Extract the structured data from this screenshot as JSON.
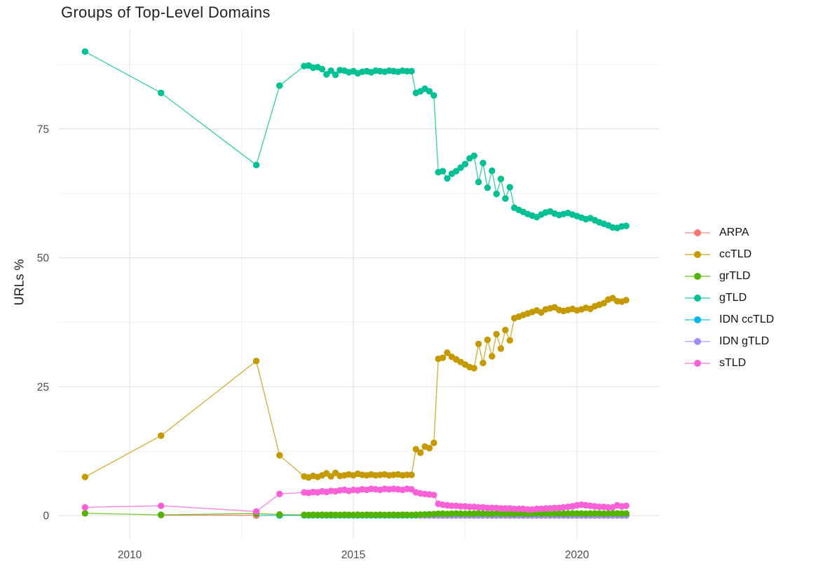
{
  "chart_data": {
    "type": "line",
    "title": "Groups of Top-Level Domains",
    "xlabel": "",
    "ylabel": "URLs %",
    "legend_position": "right",
    "grid": true,
    "x_ticks": [
      2010,
      2015,
      2020
    ],
    "x_minor_ticks": [
      2012.5,
      2017.5
    ],
    "y_ticks": [
      0,
      25,
      50,
      75
    ],
    "y_minor_ticks": [
      12.5,
      37.5,
      62.5,
      87.5
    ],
    "x_range": [
      2008.4,
      2021.85
    ],
    "y_range": [
      -4.6,
      94.3
    ],
    "colors": {
      "major_grid": "#e4e4e4",
      "minor_grid": "#f1f1f1",
      "tick_label": "#4d4d4d",
      "title": "#222222"
    },
    "x": [
      2009.0,
      2010.7,
      2012.83,
      2013.35,
      2013.9,
      2014.0,
      2014.1,
      2014.2,
      2014.3,
      2014.4,
      2014.5,
      2014.6,
      2014.7,
      2014.8,
      2014.9,
      2015.0,
      2015.1,
      2015.2,
      2015.3,
      2015.4,
      2015.5,
      2015.6,
      2015.7,
      2015.8,
      2015.9,
      2016.0,
      2016.1,
      2016.2,
      2016.3,
      2016.4,
      2016.5,
      2016.6,
      2016.7,
      2016.8,
      2016.9,
      2017.0,
      2017.1,
      2017.2,
      2017.3,
      2017.4,
      2017.5,
      2017.6,
      2017.7,
      2017.8,
      2017.9,
      2018.0,
      2018.1,
      2018.2,
      2018.3,
      2018.4,
      2018.5,
      2018.6,
      2018.7,
      2018.8,
      2018.9,
      2019.0,
      2019.1,
      2019.2,
      2019.3,
      2019.4,
      2019.5,
      2019.6,
      2019.7,
      2019.8,
      2019.9,
      2020.0,
      2020.1,
      2020.2,
      2020.3,
      2020.4,
      2020.5,
      2020.6,
      2020.7,
      2020.8,
      2020.9,
      2021.0,
      2021.1
    ],
    "series": [
      {
        "name": "ARPA",
        "color": "#F8766D",
        "values": [
          null,
          0.1,
          0.05,
          null,
          null,
          null,
          null,
          null,
          null,
          null,
          null,
          null,
          null,
          null,
          null,
          null,
          null,
          null,
          null,
          null,
          null,
          null,
          null,
          null,
          null,
          null,
          null,
          null,
          null,
          null,
          null,
          null,
          null,
          null,
          null,
          null,
          null,
          null,
          null,
          null,
          null,
          null,
          null,
          null,
          null,
          null,
          null,
          null,
          null,
          null,
          null,
          null,
          null,
          null,
          null,
          null,
          null,
          null,
          null,
          null,
          null,
          null,
          null,
          null,
          null,
          null,
          null,
          null,
          null,
          null,
          null,
          null,
          null,
          null,
          null,
          null,
          null
        ]
      },
      {
        "name": "ccTLD",
        "color": "#C49A00",
        "values": [
          7.5,
          15.5,
          30.0,
          11.7,
          7.6,
          7.4,
          7.7,
          7.5,
          7.8,
          8.2,
          7.6,
          8.3,
          7.7,
          7.8,
          8.0,
          7.8,
          8.1,
          7.9,
          7.8,
          8.0,
          7.8,
          7.9,
          8.0,
          7.8,
          7.9,
          8.0,
          7.8,
          7.9,
          7.9,
          12.9,
          12.2,
          13.4,
          13.1,
          14.1,
          30.4,
          30.6,
          31.6,
          30.8,
          30.3,
          29.8,
          29.3,
          28.8,
          28.6,
          33.3,
          29.6,
          34.1,
          30.9,
          35.2,
          32.4,
          36.0,
          34.0,
          38.3,
          38.6,
          38.9,
          39.2,
          39.5,
          39.8,
          39.4,
          40.0,
          40.2,
          40.4,
          39.9,
          39.7,
          39.9,
          40.1,
          39.8,
          40.0,
          40.3,
          40.1,
          40.6,
          40.9,
          41.2,
          41.9,
          42.2,
          41.6,
          41.5,
          41.8
        ]
      },
      {
        "name": "grTLD",
        "color": "#53B400",
        "values": [
          0.45,
          0.15,
          0.4,
          0.2,
          0.15,
          0.12,
          0.18,
          0.14,
          0.16,
          0.13,
          0.17,
          0.15,
          0.14,
          0.16,
          0.15,
          0.13,
          0.17,
          0.14,
          0.16,
          0.15,
          0.14,
          0.16,
          0.13,
          0.15,
          0.17,
          0.14,
          0.16,
          0.15,
          0.13,
          0.16,
          0.2,
          0.22,
          0.25,
          0.28,
          0.35,
          0.38,
          0.33,
          0.36,
          0.4,
          0.37,
          0.35,
          0.38,
          0.36,
          0.4,
          0.38,
          0.35,
          0.37,
          0.4,
          0.38,
          0.36,
          0.39,
          0.37,
          0.4,
          0.38,
          0.36,
          0.39,
          0.41,
          0.38,
          0.4,
          0.37,
          0.39,
          0.41,
          0.38,
          0.4,
          0.42,
          0.39,
          0.41,
          0.38,
          0.4,
          0.42,
          0.4,
          0.38,
          0.41,
          0.39,
          0.42,
          0.4,
          0.41
        ]
      },
      {
        "name": "gTLD",
        "color": "#00C094",
        "values": [
          90.0,
          82.0,
          68.0,
          83.4,
          87.2,
          87.3,
          86.9,
          87.0,
          86.6,
          85.6,
          86.3,
          85.5,
          86.4,
          86.3,
          86.0,
          86.2,
          85.8,
          86.1,
          86.2,
          86.0,
          86.3,
          86.2,
          86.1,
          86.3,
          86.2,
          86.1,
          86.3,
          86.2,
          86.2,
          82.0,
          82.3,
          82.8,
          82.3,
          81.5,
          66.6,
          66.8,
          65.4,
          66.3,
          66.8,
          67.5,
          68.2,
          69.3,
          69.8,
          64.7,
          68.4,
          63.6,
          66.9,
          62.4,
          65.3,
          61.5,
          63.7,
          59.7,
          59.3,
          58.9,
          58.5,
          58.2,
          57.9,
          58.4,
          58.8,
          59.0,
          58.6,
          58.3,
          58.5,
          58.7,
          58.4,
          58.1,
          57.8,
          57.5,
          57.7,
          57.3,
          56.9,
          56.6,
          56.3,
          55.9,
          55.8,
          56.1,
          56.2
        ]
      },
      {
        "name": "IDN ccTLD",
        "color": "#00B6EB",
        "values": [
          null,
          null,
          0.02,
          0.03,
          0.05,
          0.05,
          0.05,
          0.05,
          0.05,
          0.05,
          0.05,
          0.05,
          0.05,
          0.05,
          0.05,
          0.05,
          0.05,
          0.05,
          0.05,
          0.05,
          0.05,
          0.05,
          0.05,
          0.05,
          0.05,
          0.05,
          0.05,
          0.05,
          0.05,
          0.05,
          0.05,
          0.05,
          0.05,
          0.05,
          0.05,
          0.05,
          0.05,
          0.05,
          0.05,
          0.05,
          0.05,
          0.05,
          0.05,
          0.05,
          0.05,
          0.05,
          0.05,
          0.05,
          0.05,
          0.05,
          0.05,
          0.05,
          0.05,
          0.05,
          0.05,
          0.05,
          0.05,
          0.05,
          0.05,
          0.05,
          0.05,
          0.05,
          0.05,
          0.05,
          0.05,
          0.05,
          0.05,
          0.05,
          0.05,
          0.05,
          0.05,
          0.05,
          0.05,
          0.05,
          0.05,
          0.05,
          0.05
        ]
      },
      {
        "name": "IDN gTLD",
        "color": "#A58AFF",
        "values": [
          null,
          null,
          null,
          null,
          null,
          null,
          null,
          null,
          null,
          null,
          null,
          null,
          null,
          null,
          null,
          null,
          null,
          null,
          null,
          null,
          null,
          null,
          null,
          null,
          null,
          null,
          null,
          null,
          null,
          null,
          0.02,
          0.02,
          0.02,
          0.02,
          0.02,
          0.02,
          0.02,
          0.02,
          0.02,
          0.02,
          0.02,
          0.02,
          0.02,
          0.02,
          0.02,
          0.02,
          0.02,
          0.02,
          0.02,
          0.02,
          0.02,
          0.02,
          0.02,
          0.02,
          0.02,
          0.02,
          0.02,
          0.02,
          0.02,
          0.02,
          0.02,
          0.02,
          0.02,
          0.02,
          0.02,
          0.02,
          0.02,
          0.02,
          0.02,
          0.02,
          0.02,
          0.02,
          0.02,
          0.02,
          0.02,
          0.02,
          0.02
        ]
      },
      {
        "name": "sTLD",
        "color": "#FB61D7",
        "values": [
          1.6,
          1.9,
          0.8,
          4.2,
          4.5,
          4.4,
          4.6,
          4.5,
          4.7,
          4.6,
          4.8,
          4.7,
          4.9,
          5.0,
          4.8,
          5.0,
          4.9,
          5.1,
          5.0,
          5.2,
          5.1,
          5.0,
          5.2,
          5.1,
          5.2,
          5.1,
          5.0,
          5.2,
          5.1,
          4.5,
          4.3,
          4.2,
          4.1,
          4.0,
          2.3,
          2.1,
          2.0,
          1.9,
          1.9,
          1.8,
          1.8,
          1.7,
          1.7,
          1.6,
          1.6,
          1.5,
          1.5,
          1.5,
          1.4,
          1.4,
          1.4,
          1.3,
          1.3,
          1.3,
          1.2,
          1.2,
          1.3,
          1.3,
          1.4,
          1.4,
          1.5,
          1.5,
          1.6,
          1.7,
          1.8,
          2.0,
          2.1,
          2.0,
          1.9,
          1.8,
          1.7,
          1.7,
          1.6,
          1.6,
          2.0,
          1.8,
          1.9
        ]
      }
    ]
  }
}
